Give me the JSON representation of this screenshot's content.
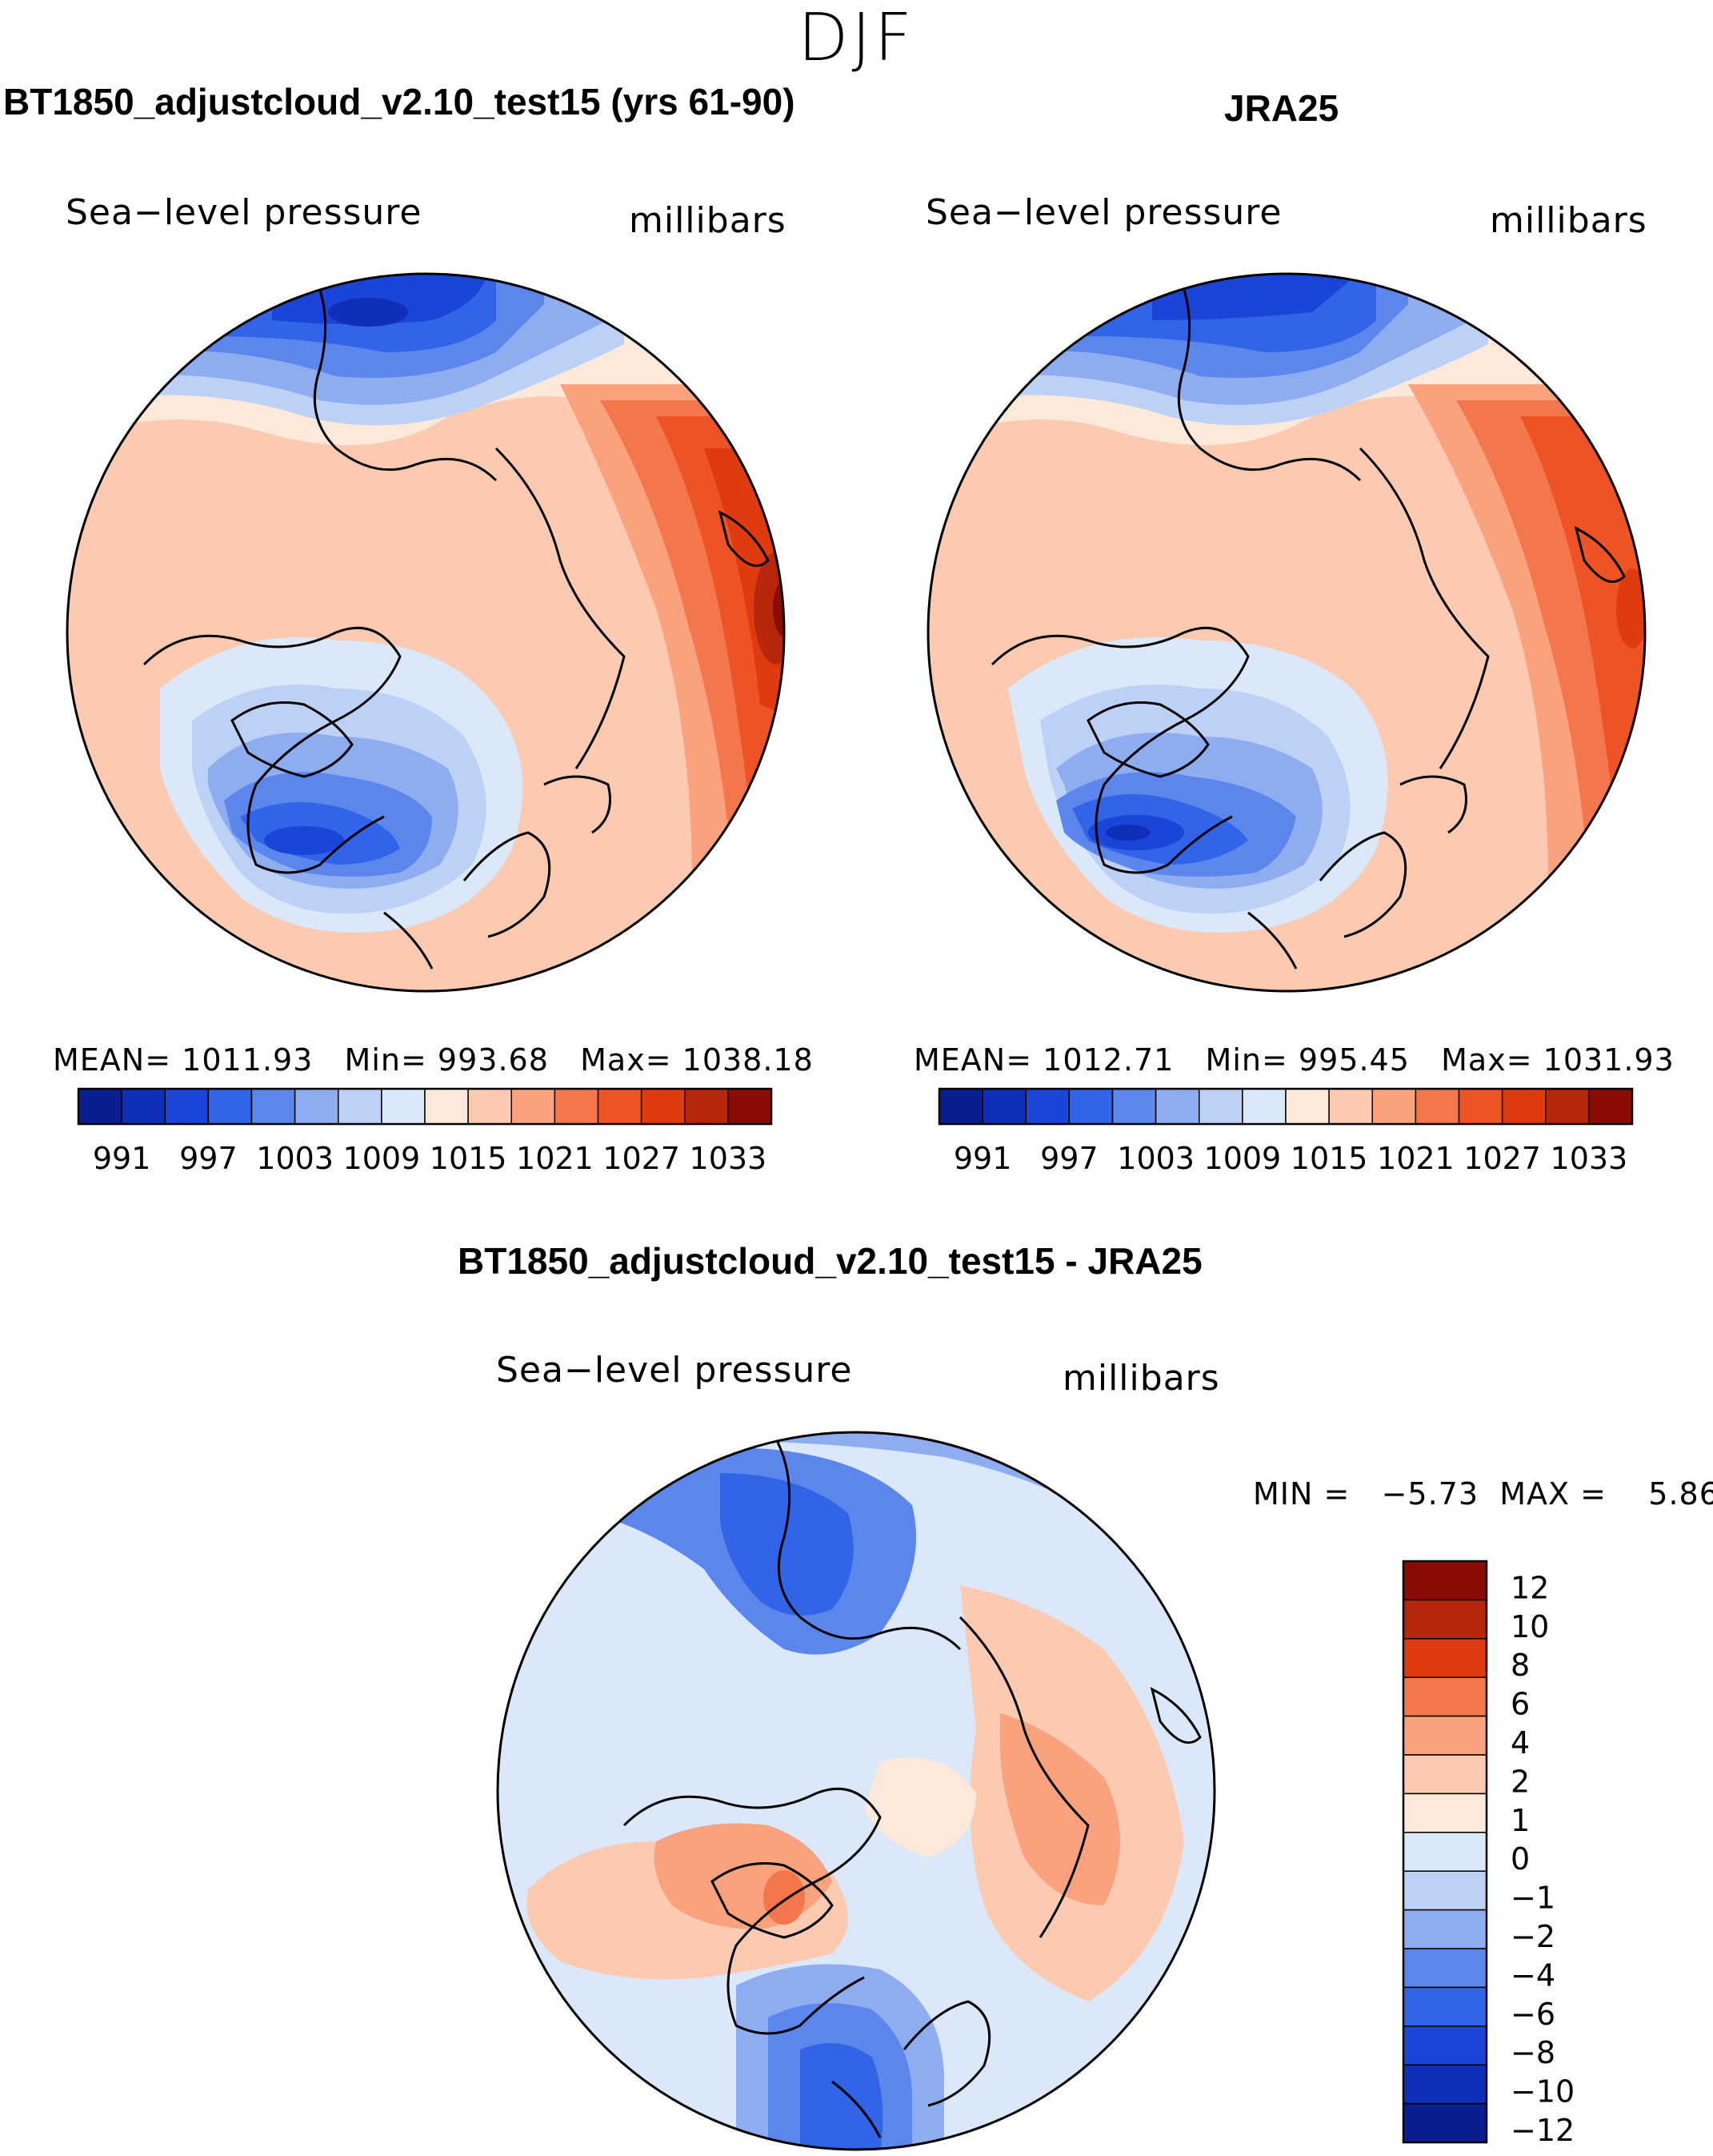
{
  "figure": {
    "season": "DJF",
    "panel1": {
      "title": "BT1850_adjustcloud_v2.10_test15 (yrs 61-90)",
      "var_label": "Sea−level pressure",
      "unit_label": "millibars",
      "stats": {
        "mean_label": "MEAN=",
        "mean": "1011.93",
        "min_label": "Min=",
        "min": "993.68",
        "max_label": "Max=",
        "max": "1038.18"
      }
    },
    "panel2": {
      "title": "JRA25",
      "var_label": "Sea−level pressure",
      "unit_label": "millibars",
      "stats": {
        "mean_label": "MEAN=",
        "mean": "1012.71",
        "min_label": "Min=",
        "min": "995.45",
        "max_label": "Max=",
        "max": "1031.93"
      }
    },
    "panel3": {
      "title": "BT1850_adjustcloud_v2.10_test15 - JRA25",
      "var_label": "Sea−level pressure",
      "unit_label": "millibars",
      "minmax": {
        "min_label": "MIN =",
        "min": "−5.73",
        "max_label": "MAX =",
        "max": "5.86"
      }
    }
  },
  "chart_data": [
    {
      "type": "heatmap",
      "subtype": "polar stereographic contour map (Northern Hemisphere)",
      "title": "BT1850_adjustcloud_v2.10_test15 (yrs 61-90)",
      "variable": "Sea-level pressure",
      "units": "millibars",
      "levels": [
        988,
        991,
        994,
        997,
        1000,
        1003,
        1006,
        1009,
        1012,
        1015,
        1018,
        1021,
        1024,
        1027,
        1030,
        1033,
        1036
      ],
      "colorbar_tick_labels": [
        "991",
        "997",
        "1003",
        "1009",
        "1015",
        "1021",
        "1027",
        "1033"
      ],
      "colors": [
        "#0a1f8f",
        "#0f2fb8",
        "#1a45d6",
        "#3264e8",
        "#5c86ec",
        "#8eadf0",
        "#bdd0f5",
        "#dbe8fa",
        "#fde9da",
        "#fccab0",
        "#f9a27d",
        "#f4764c",
        "#ee5326",
        "#df3a10",
        "#b8260b",
        "#8a0c05"
      ],
      "mean": 1011.93,
      "min": 993.68,
      "max": 1038.18
    },
    {
      "type": "heatmap",
      "subtype": "polar stereographic contour map (Northern Hemisphere)",
      "title": "JRA25",
      "variable": "Sea-level pressure",
      "units": "millibars",
      "levels": [
        988,
        991,
        994,
        997,
        1000,
        1003,
        1006,
        1009,
        1012,
        1015,
        1018,
        1021,
        1024,
        1027,
        1030,
        1033,
        1036
      ],
      "colorbar_tick_labels": [
        "991",
        "997",
        "1003",
        "1009",
        "1015",
        "1021",
        "1027",
        "1033"
      ],
      "colors": [
        "#0a1f8f",
        "#0f2fb8",
        "#1a45d6",
        "#3264e8",
        "#5c86ec",
        "#8eadf0",
        "#bdd0f5",
        "#dbe8fa",
        "#fde9da",
        "#fccab0",
        "#f9a27d",
        "#f4764c",
        "#ee5326",
        "#df3a10",
        "#b8260b",
        "#8a0c05"
      ],
      "mean": 1012.71,
      "min": 995.45,
      "max": 1031.93
    },
    {
      "type": "heatmap",
      "subtype": "polar stereographic difference contour map (Northern Hemisphere)",
      "title": "BT1850_adjustcloud_v2.10_test15 - JRA25",
      "variable": "Sea-level pressure",
      "units": "millibars",
      "levels": [
        -12,
        -10,
        -8,
        -6,
        -4,
        -2,
        -1,
        0,
        1,
        2,
        4,
        6,
        8,
        10,
        12
      ],
      "colorbar_tick_labels": [
        "12",
        "10",
        "8",
        "6",
        "4",
        "2",
        "1",
        "0",
        "−1",
        "−2",
        "−4",
        "−6",
        "−8",
        "−10",
        "−12"
      ],
      "colors": [
        "#0a1f8f",
        "#0f2fb8",
        "#1a45d6",
        "#3264e8",
        "#5c86ec",
        "#8eadf0",
        "#bdd0f5",
        "#dbe8fa",
        "#fde9da",
        "#fccab0",
        "#f9a27d",
        "#f4764c",
        "#df3a10",
        "#b8260b",
        "#8a0c05"
      ],
      "min": -5.73,
      "max": 5.86
    }
  ]
}
